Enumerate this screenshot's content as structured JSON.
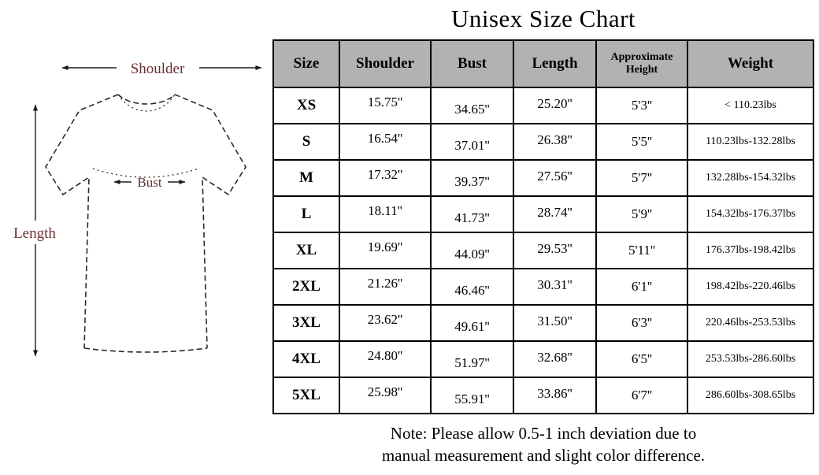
{
  "title": "Unisex Size Chart",
  "diagram": {
    "shoulder_label": "Shoulder",
    "length_label": "Length",
    "bust_label": "Bust"
  },
  "note": {
    "line1": "Note: Please allow 0.5-1 inch deviation due to",
    "line2": "manual measurement and slight color difference."
  },
  "colors": {
    "header_bg": "#b2b2b2",
    "label_color": "#6d2e2e",
    "border": "#000000"
  },
  "chart_data": {
    "type": "table",
    "title": "Unisex Size Chart",
    "columns": [
      "Size",
      "Shoulder",
      "Bust",
      "Length",
      "Approximate Height",
      "Weight"
    ],
    "rows": [
      [
        "XS",
        "15.75''",
        "34.65''",
        "25.20''",
        "5'3''",
        "< 110.23lbs"
      ],
      [
        "S",
        "16.54''",
        "37.01''",
        "26.38''",
        "5'5''",
        "110.23lbs-132.28lbs"
      ],
      [
        "M",
        "17.32''",
        "39.37''",
        "27.56''",
        "5'7''",
        "132.28lbs-154.32lbs"
      ],
      [
        "L",
        "18.11''",
        "41.73''",
        "28.74''",
        "5'9''",
        "154.32lbs-176.37lbs"
      ],
      [
        "XL",
        "19.69''",
        "44.09''",
        "29.53''",
        "5'11''",
        "176.37lbs-198.42lbs"
      ],
      [
        "2XL",
        "21.26''",
        "46.46''",
        "30.31''",
        "6'1''",
        "198.42lbs-220.46lbs"
      ],
      [
        "3XL",
        "23.62''",
        "49.61''",
        "31.50''",
        "6'3''",
        "220.46lbs-253.53lbs"
      ],
      [
        "4XL",
        "24.80''",
        "51.97''",
        "32.68''",
        "6'5''",
        "253.53lbs-286.60lbs"
      ],
      [
        "5XL",
        "25.98''",
        "55.91''",
        "33.86''",
        "6'7''",
        "286.60lbs-308.65lbs"
      ]
    ]
  }
}
